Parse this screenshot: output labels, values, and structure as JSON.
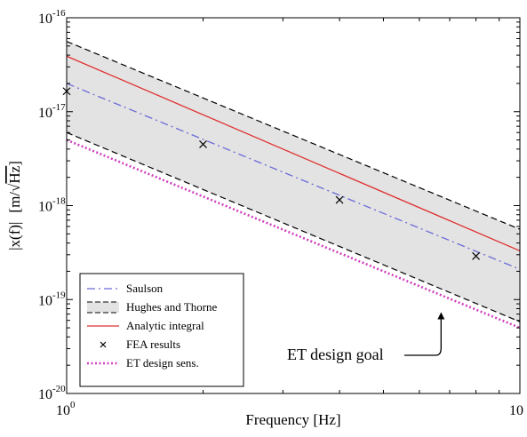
{
  "chart_data": {
    "type": "line",
    "x_scale": "log",
    "y_scale": "log",
    "xlim": [
      1,
      10
    ],
    "ylim": [
      1e-20,
      1e-16
    ],
    "xlabel": "Frequency [Hz]",
    "ylabel_parts": [
      "|x(f)|",
      "[m/",
      "√",
      "Hz",
      "]"
    ],
    "x_ticks": [
      {
        "value": 1,
        "base": "10",
        "exp": "0"
      },
      {
        "value": 10,
        "base": "10",
        "exp": ""
      }
    ],
    "y_ticks": [
      {
        "value": 1e-16,
        "base": "10",
        "exp": "-16"
      },
      {
        "value": 1e-17,
        "base": "10",
        "exp": "-17"
      },
      {
        "value": 1e-18,
        "base": "10",
        "exp": "-18"
      },
      {
        "value": 1e-19,
        "base": "10",
        "exp": "-19"
      },
      {
        "value": 1e-20,
        "base": "10",
        "exp": "-20"
      }
    ],
    "grid": false,
    "legend_position": "bottom-left",
    "series": [
      {
        "name": "Saulson",
        "kind": "line",
        "style": "dashdot",
        "color": "#6a6ad8",
        "x": [
          1,
          10
        ],
        "y": [
          2e-17,
          2.1e-19
        ]
      },
      {
        "name": "Hughes and Thorne",
        "kind": "band",
        "style": "dashed",
        "color": "#000000",
        "fill": "#e3e3e3",
        "x": [
          1,
          10
        ],
        "upper": [
          5.6e-17,
          5.6e-19
        ],
        "lower": [
          6e-18,
          5.8e-20
        ]
      },
      {
        "name": "Analytic integral",
        "kind": "line",
        "style": "solid",
        "color": "#e03030",
        "x": [
          1,
          10
        ],
        "y": [
          3.9e-17,
          3.3e-19
        ]
      },
      {
        "name": "FEA results",
        "kind": "scatter",
        "marker": "x",
        "color": "#000000",
        "x": [
          1.0,
          2.0,
          4.0,
          8.0
        ],
        "y": [
          1.65e-17,
          4.5e-18,
          1.15e-18,
          2.9e-19
        ]
      },
      {
        "name": "ET design sens.",
        "kind": "line",
        "style": "dotted",
        "color": "#d040c0",
        "x": [
          1,
          10
        ],
        "y": [
          5e-18,
          5e-20
        ]
      }
    ],
    "annotations": [
      {
        "text": "ET design goal",
        "arrow_to": {
          "x": 6.7,
          "y": 7.5e-20
        }
      }
    ]
  }
}
